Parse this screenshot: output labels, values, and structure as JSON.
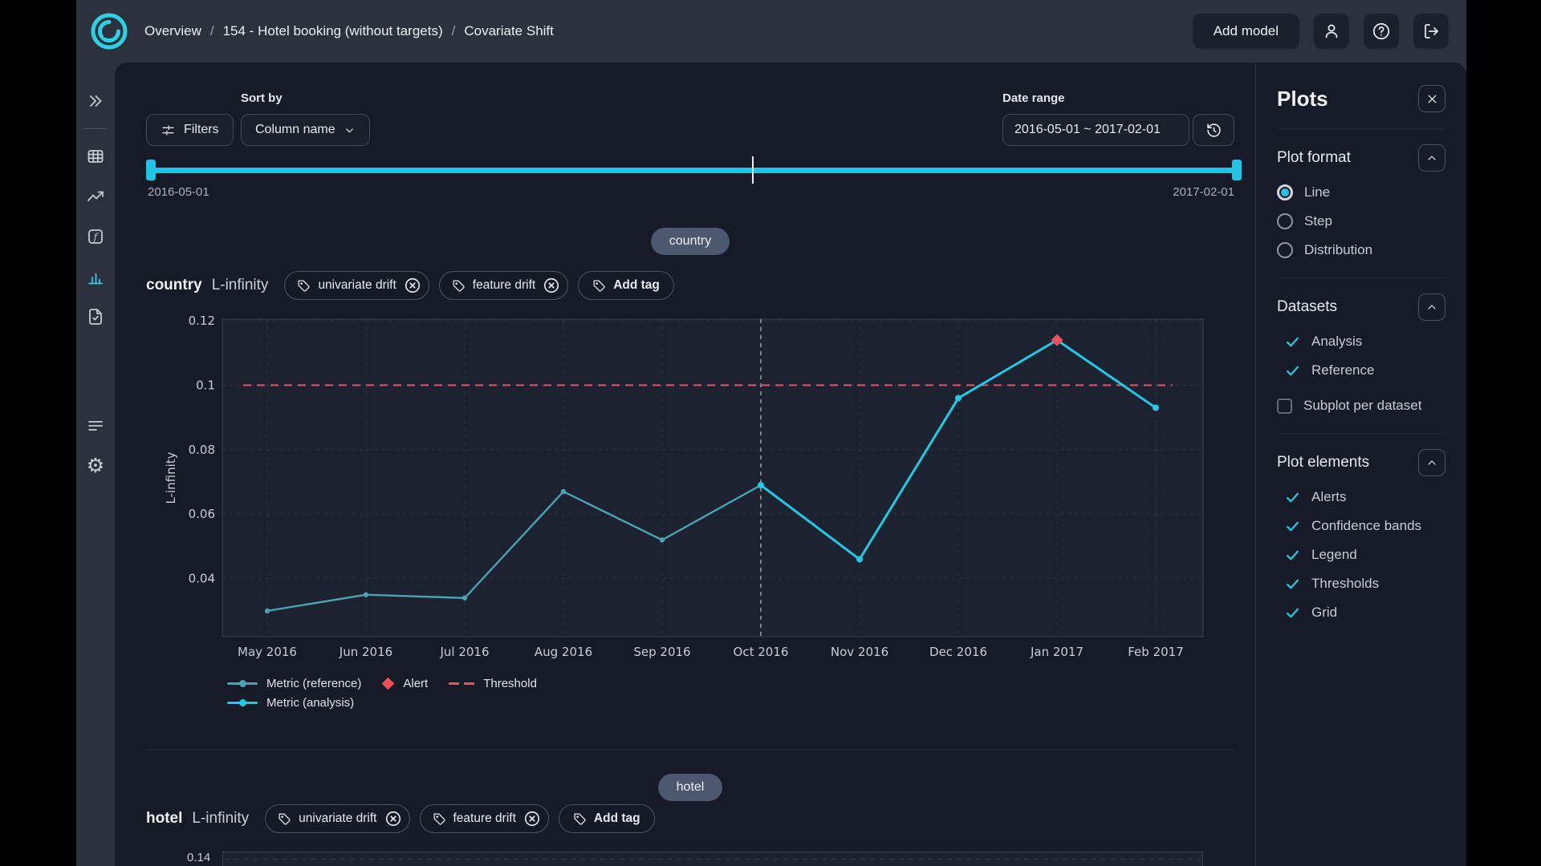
{
  "header": {
    "breadcrumb": [
      "Overview",
      "154 - Hotel booking (without targets)",
      "Covariate Shift"
    ],
    "separator": "/",
    "add_model_label": "Add model"
  },
  "toolbar": {
    "sort_by_label": "Sort by",
    "filters_label": "Filters",
    "sort_value": "Column name",
    "date_range_label": "Date range",
    "date_range_value": "2016-05-01 ~ 2017-02-01"
  },
  "timeline": {
    "start_label": "2016-05-01",
    "end_label": "2017-02-01"
  },
  "sections": {
    "country": {
      "pill": "country",
      "title": "country",
      "metric": "L-infinity",
      "tag1": "univariate drift",
      "tag2": "feature drift",
      "add_tag": "Add tag"
    },
    "hotel": {
      "pill": "hotel",
      "title": "hotel",
      "metric": "L-infinity",
      "tag1": "univariate drift",
      "tag2": "feature drift",
      "add_tag": "Add tag",
      "first_tick": "0.14"
    }
  },
  "legend": {
    "reference": "Metric (reference)",
    "analysis": "Metric (analysis)",
    "alert": "Alert",
    "threshold": "Threshold"
  },
  "plots_panel": {
    "title": "Plots",
    "format": {
      "title": "Plot format",
      "options": [
        {
          "label": "Line",
          "selected": true
        },
        {
          "label": "Step",
          "selected": false
        },
        {
          "label": "Distribution",
          "selected": false
        }
      ]
    },
    "datasets": {
      "title": "Datasets",
      "checks": [
        {
          "label": "Analysis"
        },
        {
          "label": "Reference"
        }
      ],
      "subplot_label": "Subplot per dataset",
      "subplot_checked": false
    },
    "elements": {
      "title": "Plot elements",
      "checks": [
        {
          "label": "Alerts"
        },
        {
          "label": "Confidence bands"
        },
        {
          "label": "Legend"
        },
        {
          "label": "Thresholds"
        },
        {
          "label": "Grid"
        }
      ]
    }
  },
  "colors": {
    "accent_cyan": "#21cbe6",
    "reference_teal": "#4aa3b1",
    "alert_red": "#ee4f5c",
    "threshold_red": "#e25563"
  },
  "chart_data": {
    "type": "line",
    "title": "country L-infinity",
    "ylabel": "L-infinity",
    "x": [
      "May 2016",
      "Jun 2016",
      "Jul 2016",
      "Aug 2016",
      "Sep 2016",
      "Oct 2016",
      "Nov 2016",
      "Dec 2016",
      "Jan 2017",
      "Feb 2017"
    ],
    "y_ticks": [
      0.04,
      0.06,
      0.08,
      0.1,
      0.12
    ],
    "ylim": [
      0.022,
      0.1205
    ],
    "grid": true,
    "legend_position": "bottom-left",
    "threshold": 0.1,
    "split_index": 5,
    "series": [
      {
        "name": "Metric (reference)",
        "start_index": 0,
        "values": [
          0.03,
          0.035,
          0.034,
          0.067,
          0.052,
          0.069
        ]
      },
      {
        "name": "Metric (analysis)",
        "start_index": 5,
        "values": [
          0.069,
          0.046,
          0.096,
          0.114,
          0.093
        ]
      }
    ],
    "alerts": [
      {
        "x": "Jan 2017",
        "index": 8,
        "value": 0.114
      }
    ]
  }
}
